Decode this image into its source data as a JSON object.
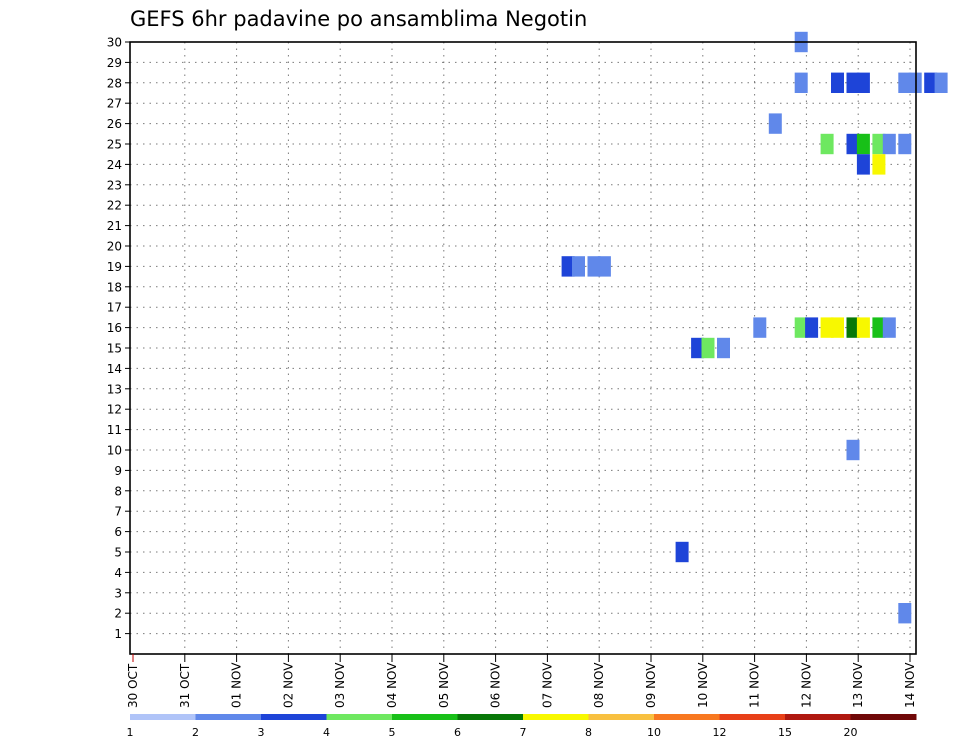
{
  "chart_data": {
    "type": "heatmap",
    "title": "GEFS 6hr padavine po ansamblima Negotin",
    "y_tick_labels": [
      "1",
      "2",
      "3",
      "4",
      "5",
      "6",
      "7",
      "8",
      "9",
      "10",
      "11",
      "12",
      "13",
      "14",
      "15",
      "16",
      "17",
      "18",
      "19",
      "20",
      "21",
      "22",
      "23",
      "24",
      "25",
      "26",
      "27",
      "28",
      "29",
      "30"
    ],
    "x_tick_labels": [
      "30 OCT",
      "31 OCT",
      "01 NOV",
      "02 NOV",
      "03 NOV",
      "04 NOV",
      "05 NOV",
      "06 NOV",
      "07 NOV",
      "08 NOV",
      "09 NOV",
      "10 NOV",
      "11 NOV",
      "12 NOV",
      "13 NOV",
      "14 NOV"
    ],
    "grid": true,
    "colorbar": {
      "levels": [
        "1",
        "2",
        "3",
        "4",
        "5",
        "6",
        "7",
        "8",
        "10",
        "12",
        "15",
        "20"
      ],
      "colors": [
        "#b0c4f8",
        "#6088ea",
        "#1e44d8",
        "#6ee860",
        "#18c018",
        "#087808",
        "#f8f800",
        "#f8c040",
        "#f87820",
        "#e84018",
        "#b01810",
        "#700808"
      ]
    },
    "cells": [
      {
        "member": 30,
        "day": 12.9,
        "category": 1
      },
      {
        "member": 28,
        "day": 12.9,
        "category": 1
      },
      {
        "member": 28,
        "day": 13.6,
        "category": 2
      },
      {
        "member": 28,
        "day": 13.9,
        "category": 2
      },
      {
        "member": 28,
        "day": 14.1,
        "category": 2
      },
      {
        "member": 28,
        "day": 14.9,
        "category": 1
      },
      {
        "member": 28,
        "day": 15.1,
        "category": 1
      },
      {
        "member": 28,
        "day": 15.4,
        "category": 2
      },
      {
        "member": 28,
        "day": 15.6,
        "category": 1
      },
      {
        "member": 26,
        "day": 12.4,
        "category": 1
      },
      {
        "member": 25,
        "day": 13.4,
        "category": 3
      },
      {
        "member": 25,
        "day": 13.9,
        "category": 2
      },
      {
        "member": 25,
        "day": 14.1,
        "category": 4
      },
      {
        "member": 25,
        "day": 14.4,
        "category": 3
      },
      {
        "member": 25,
        "day": 14.6,
        "category": 1
      },
      {
        "member": 25,
        "day": 14.9,
        "category": 1
      },
      {
        "member": 24,
        "day": 14.1,
        "category": 2
      },
      {
        "member": 24,
        "day": 14.4,
        "category": 6
      },
      {
        "member": 19,
        "day": 8.4,
        "category": 2
      },
      {
        "member": 19,
        "day": 8.6,
        "category": 1
      },
      {
        "member": 19,
        "day": 8.9,
        "category": 1
      },
      {
        "member": 19,
        "day": 9.1,
        "category": 1
      },
      {
        "member": 16,
        "day": 12.1,
        "category": 1
      },
      {
        "member": 16,
        "day": 12.9,
        "category": 3
      },
      {
        "member": 16,
        "day": 13.1,
        "category": 2
      },
      {
        "member": 16,
        "day": 13.4,
        "category": 6
      },
      {
        "member": 16,
        "day": 13.6,
        "category": 6
      },
      {
        "member": 16,
        "day": 13.9,
        "category": 5
      },
      {
        "member": 16,
        "day": 14.1,
        "category": 6
      },
      {
        "member": 16,
        "day": 14.4,
        "category": 4
      },
      {
        "member": 16,
        "day": 14.6,
        "category": 1
      },
      {
        "member": 15,
        "day": 10.9,
        "category": 2
      },
      {
        "member": 15,
        "day": 11.1,
        "category": 3
      },
      {
        "member": 15,
        "day": 11.4,
        "category": 1
      },
      {
        "member": 10,
        "day": 13.9,
        "category": 1
      },
      {
        "member": 5,
        "day": 10.6,
        "category": 2
      },
      {
        "member": 2,
        "day": 14.9,
        "category": 1
      }
    ]
  }
}
